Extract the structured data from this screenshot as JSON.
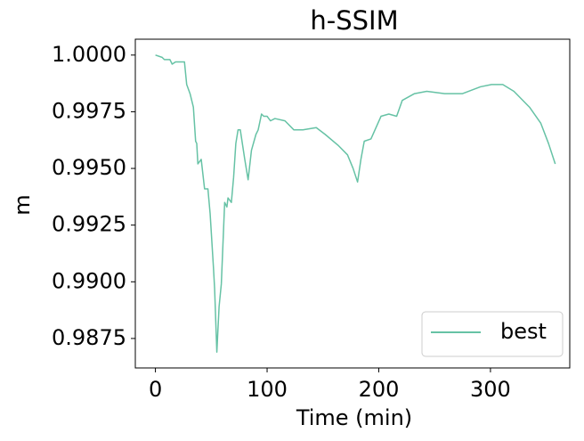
{
  "chart_data": {
    "type": "line",
    "title": "h-SSIM",
    "xlabel": "Time (min)",
    "ylabel": "m",
    "x": [
      0,
      6,
      8,
      13,
      15,
      18,
      26,
      28,
      31,
      34,
      36,
      37,
      38,
      41,
      44,
      47,
      49,
      52,
      53,
      55,
      57,
      59,
      62,
      64,
      65,
      68,
      70,
      72,
      74,
      76,
      80,
      83,
      86,
      90,
      92,
      95,
      97,
      100,
      103,
      107,
      116,
      124,
      132,
      144,
      152,
      164,
      172,
      177,
      181,
      184,
      187,
      193,
      202,
      209,
      216,
      221,
      232,
      243,
      259,
      275,
      291,
      301,
      311,
      321,
      335,
      345,
      352,
      358
    ],
    "series": [
      {
        "name": "best",
        "color": "#66c2a5",
        "values": [
          1.0,
          0.9999,
          0.9998,
          0.9998,
          0.9996,
          0.9997,
          0.9997,
          0.9987,
          0.9983,
          0.9977,
          0.9962,
          0.9961,
          0.9952,
          0.9954,
          0.9941,
          0.9941,
          0.993,
          0.9906,
          0.9897,
          0.9869,
          0.9889,
          0.9899,
          0.9935,
          0.9933,
          0.9937,
          0.9935,
          0.9946,
          0.9961,
          0.9967,
          0.9967,
          0.9954,
          0.9945,
          0.9958,
          0.9965,
          0.9967,
          0.9974,
          0.9973,
          0.9973,
          0.9971,
          0.9972,
          0.9971,
          0.9967,
          0.9967,
          0.9968,
          0.9965,
          0.996,
          0.9956,
          0.995,
          0.9944,
          0.9954,
          0.9962,
          0.9963,
          0.9973,
          0.9974,
          0.9973,
          0.998,
          0.9983,
          0.9984,
          0.9983,
          0.9983,
          0.9986,
          0.9987,
          0.9987,
          0.9984,
          0.9977,
          0.997,
          0.9961,
          0.9952
        ]
      }
    ],
    "xlim": [
      -18,
      371
    ],
    "xticks": [
      0,
      100,
      200,
      300
    ],
    "ylim": [
      0.9862,
      1.0007
    ],
    "yticks": [
      {
        "value": 0.9875,
        "label": "0.9875"
      },
      {
        "value": 0.99,
        "label": "0.9900"
      },
      {
        "value": 0.9925,
        "label": "0.9925"
      },
      {
        "value": 0.995,
        "label": "0.9950"
      },
      {
        "value": 0.9975,
        "label": "0.9975"
      },
      {
        "value": 1,
        "label": "1.0000"
      }
    ],
    "grid": false,
    "legend": "lower right"
  }
}
